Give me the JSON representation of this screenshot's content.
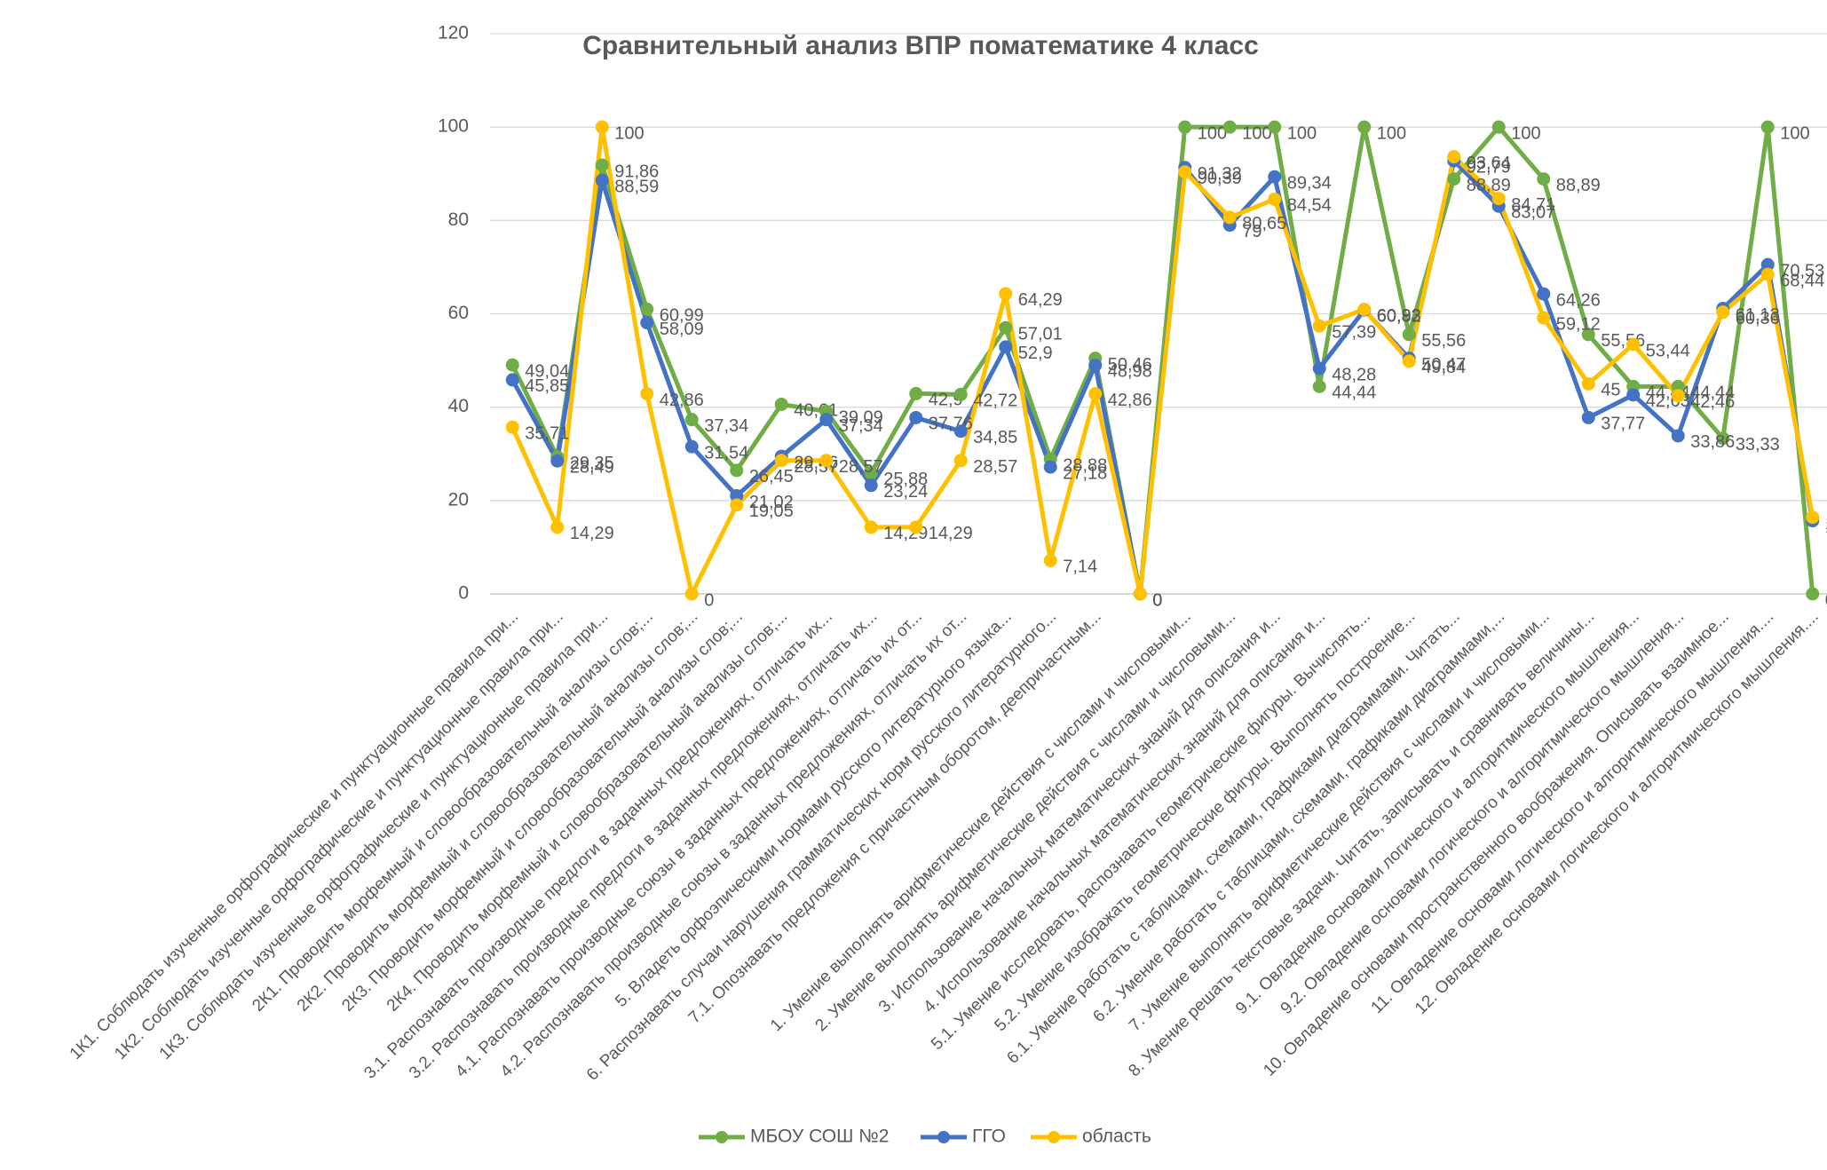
{
  "chart_data": {
    "type": "line",
    "title": "Сравнительный анализ ВПР поматематике 4 класс",
    "categories": [
      "1К1. Соблюдать изученные орфографические и пунктуационные правила при...",
      "1К2. Соблюдать изученные орфографические и пунктуационные правила при...",
      "1К3. Соблюдать изученные орфографические и пунктуационные правила при...",
      "2К1. Проводить морфемный и словообразовательный анализы слов;...",
      "2К2. Проводить морфемный и словообразовательный анализы слов;...",
      "2К3. Проводить морфемный и словообразовательный анализы слов;...",
      "2К4. Проводить морфемный и словообразовательный анализы слов;...",
      "3.1. Распознавать производные предлоги в заданных предложениях, отличать их...",
      "3.2. Распознавать производные предлоги в заданных предложениях, отличать их...",
      "4.1. Распознавать производные союзы в заданных предложениях, отличать их от...",
      "4.2. Распознавать производные союзы в заданных предложениях, отличать их от...",
      "5. Владеть орфоэпическими нормами русского литературного языка...",
      "6. Распознавать случаи нарушения грамматических норм русского литературного...",
      "7.1. Опознавать предложения с причастным оборотом, деепричастным...",
      null,
      "1. Умение выполнять арифметические действия с числами и числовыми...",
      "2. Умение выполнять арифметические действия с числами и числовыми...",
      "3. Использование начальных математических знаний для описания и...",
      "4. Использование начальных математических знаний для описания и...",
      "5.1. Умение исследовать, распознавать геометрические фигуры. Вычислять...",
      "5.2. Умение изображать геометрические фигуры. Выполнять построение...",
      "6.1. Умение работать с таблицами, схемами, графиками диаграммами. Читать...",
      "6.2. Умение работать с таблицами, схемами, графиками диаграммами,...",
      "7. Умение выполнять арифметические действия с числами и числовыми...",
      "8. Умение решать текстовые задачи. Читать, записывать и сравнивать величины...",
      "9.1. Овладение основами логического и алгоритмического мышления...",
      "9.2. Овладение основами логического и алгоритмического мышления...",
      "10. Овладение основами пространственного воображения. Описывать взаимное...",
      "11. Овладение основами логического и алгоритмического мышления....",
      "12. Овладение основами логического и алгоритмического мышления...."
    ],
    "series": [
      {
        "name": "МБОУ СОШ №2",
        "color": "#70ad47",
        "values": [
          49.04,
          29.35,
          91.86,
          60.99,
          37.34,
          26.45,
          40.61,
          39.09,
          25.88,
          42.9,
          42.72,
          57.01,
          28.88,
          50.46,
          0,
          100,
          100,
          100,
          44.44,
          100,
          55.56,
          88.89,
          100,
          88.89,
          55.56,
          44.44,
          44.44,
          33.33,
          100,
          0
        ]
      },
      {
        "name": "ГГО",
        "color": "#4472c4",
        "values": [
          45.85,
          28.49,
          88.59,
          58.09,
          31.54,
          21.02,
          29.46,
          37.34,
          23.24,
          37.76,
          34.85,
          52.9,
          27.18,
          48.98,
          0,
          91.32,
          79,
          89.34,
          48.28,
          60.82,
          50.47,
          92.79,
          83.07,
          64.26,
          37.77,
          42.63,
          33.86,
          61.13,
          70.53,
          15.67
        ]
      },
      {
        "name": "область",
        "color": "#ffc000",
        "values": [
          35.71,
          14.29,
          100,
          42.86,
          0,
          19.05,
          28.57,
          28.57,
          14.29,
          14.29,
          28.57,
          64.29,
          7.14,
          42.86,
          0,
          90.39,
          80.65,
          84.54,
          57.39,
          60.93,
          49.84,
          93.64,
          84.71,
          59.12,
          45,
          53.44,
          42.46,
          60.36,
          68.44,
          16.41
        ]
      }
    ],
    "ylim": [
      0,
      120
    ],
    "yticks": [
      0,
      20,
      40,
      60,
      80,
      100,
      120
    ],
    "grid": true,
    "legend": "bottom"
  }
}
